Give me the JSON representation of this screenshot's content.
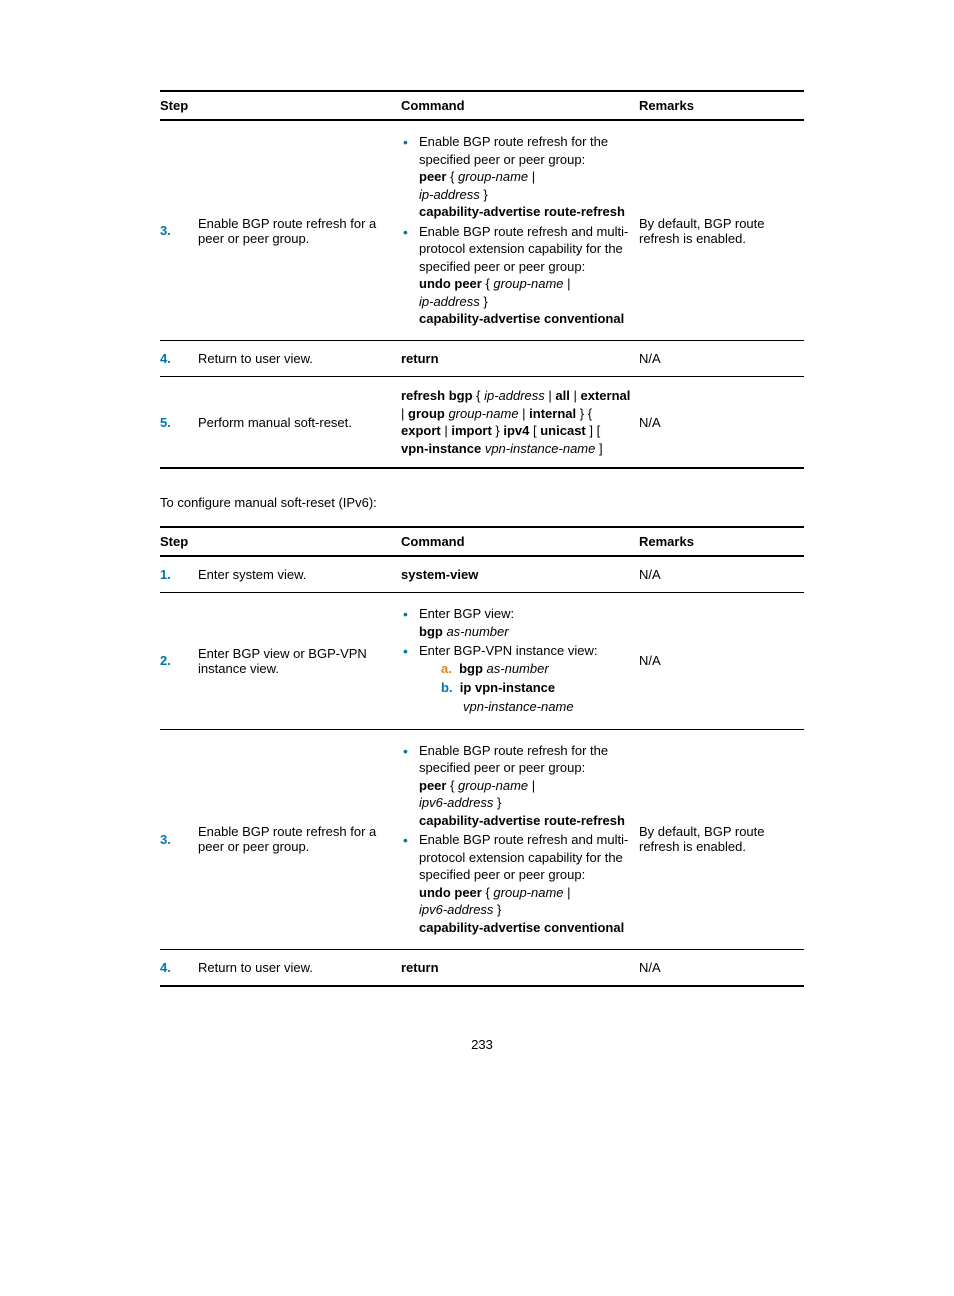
{
  "table1": {
    "headers": {
      "step": "Step",
      "command": "Command",
      "remarks": "Remarks"
    },
    "rows": [
      {
        "num": "3.",
        "step": "Enable BGP route refresh for a peer or peer group.",
        "cmd_bullet1_l1": "Enable BGP route refresh for the specified peer or peer group:",
        "cmd_bullet1_l2a": "peer",
        "cmd_bullet1_l2b": " { ",
        "cmd_bullet1_l2c": "group-name",
        "cmd_bullet1_l2d": " |",
        "cmd_bullet1_l3a": "ip-address",
        "cmd_bullet1_l3b": " }",
        "cmd_bullet1_l4": "capability-advertise route-refresh",
        "cmd_bullet2_l1": "Enable BGP route refresh and multi-protocol extension capability for the specified peer or peer group:",
        "cmd_bullet2_l2a": "undo peer",
        "cmd_bullet2_l2b": " { ",
        "cmd_bullet2_l2c": "group-name",
        "cmd_bullet2_l2d": " |",
        "cmd_bullet2_l3a": "ip-address",
        "cmd_bullet2_l3b": " }",
        "cmd_bullet2_l4": "capability-advertise conventional",
        "remarks": "By default, BGP route refresh is enabled."
      },
      {
        "num": "4.",
        "step": "Return to user view.",
        "cmd": "return",
        "remarks": "N/A"
      },
      {
        "num": "5.",
        "step": "Perform manual soft-reset.",
        "cmd_a": "refresh bgp",
        "cmd_b": " { ",
        "cmd_c": "ip-address",
        "cmd_d": " | ",
        "cmd_e": "all",
        "cmd_f": " | ",
        "cmd_g": "external",
        "cmd_h": " | ",
        "cmd_i": "group",
        "cmd_j": " ",
        "cmd_k": "group-name",
        "cmd_l": " | ",
        "cmd_m": "internal",
        "cmd_n": " } { ",
        "cmd_o": "export",
        "cmd_p": " | ",
        "cmd_q": "import",
        "cmd_r": " } ",
        "cmd_s": "ipv4",
        "cmd_t": " [ ",
        "cmd_u": "unicast",
        "cmd_v": " ] [ ",
        "cmd_w": "vpn-instance",
        "cmd_x": " ",
        "cmd_y": "vpn-instance-name",
        "cmd_z": " ]",
        "remarks": "N/A"
      }
    ]
  },
  "section_text": "To configure manual soft-reset (IPv6):",
  "table2": {
    "headers": {
      "step": "Step",
      "command": "Command",
      "remarks": "Remarks"
    },
    "rows": [
      {
        "num": "1.",
        "step": "Enter system view.",
        "cmd": "system-view",
        "remarks": "N/A"
      },
      {
        "num": "2.",
        "step": "Enter BGP view or BGP-VPN instance view.",
        "b1_l1": "Enter BGP view:",
        "b1_l2a": "bgp",
        "b1_l2b": " ",
        "b1_l2c": "as-number",
        "b2_l1": "Enter BGP-VPN instance view:",
        "sub_a": "a.",
        "sub_a1": "bgp",
        "sub_a2": " ",
        "sub_a3": "as-number",
        "sub_b": "b.",
        "sub_b1": "ip vpn-instance",
        "sub_b2": "vpn-instance-name",
        "remarks": "N/A"
      },
      {
        "num": "3.",
        "step": "Enable BGP route refresh for a peer or peer group.",
        "cmd_bullet1_l1": "Enable BGP route refresh for the specified peer or peer group:",
        "cmd_bullet1_l2a": "peer",
        "cmd_bullet1_l2b": " { ",
        "cmd_bullet1_l2c": "group-name",
        "cmd_bullet1_l2d": " |",
        "cmd_bullet1_l3a": "ipv6-address",
        "cmd_bullet1_l3b": " }",
        "cmd_bullet1_l4": "capability-advertise route-refresh",
        "cmd_bullet2_l1": "Enable BGP route refresh and multi-protocol extension capability for the specified peer or peer group:",
        "cmd_bullet2_l2a": "undo peer",
        "cmd_bullet2_l2b": " { ",
        "cmd_bullet2_l2c": "group-name",
        "cmd_bullet2_l2d": " |",
        "cmd_bullet2_l3a": "ipv6-address",
        "cmd_bullet2_l3b": " }",
        "cmd_bullet2_l4": "capability-advertise conventional",
        "remarks": "By default, BGP route refresh is enabled."
      },
      {
        "num": "4.",
        "step": "Return to user view.",
        "cmd": "return",
        "remarks": "N/A"
      }
    ]
  },
  "page_number": "233"
}
